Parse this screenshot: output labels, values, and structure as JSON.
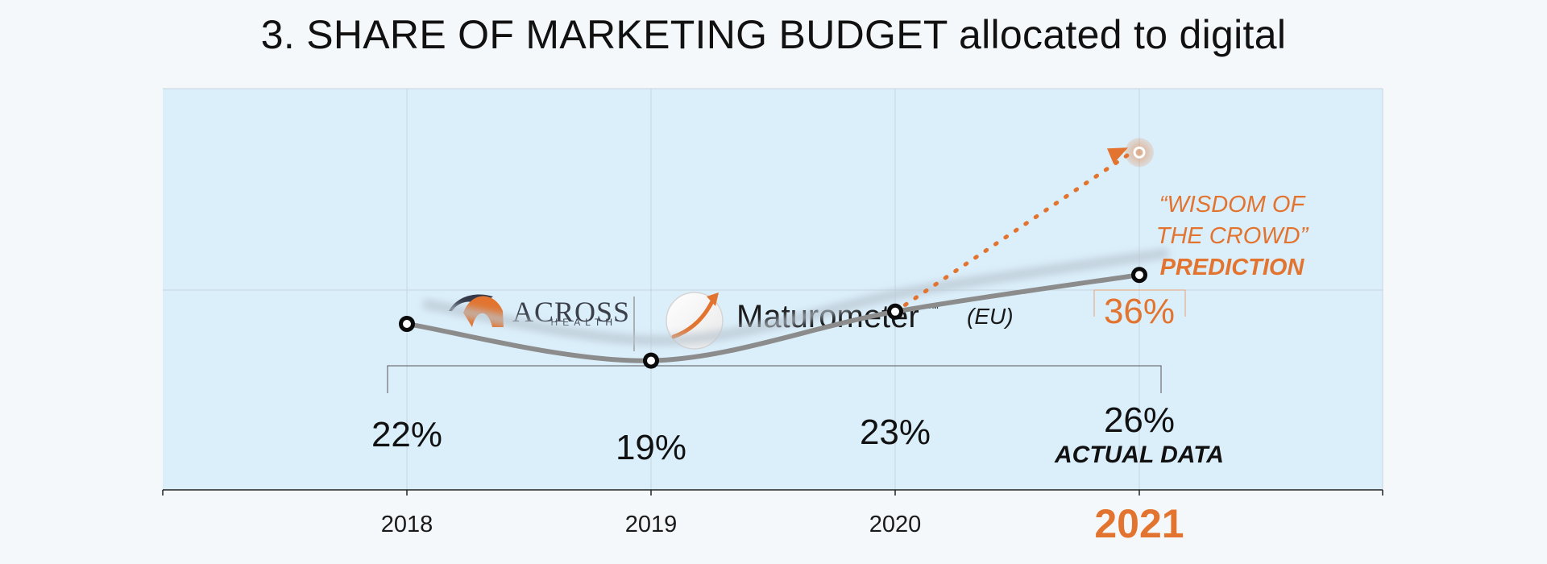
{
  "title": {
    "main": "3. SHARE OF MARKETING BUDGET",
    "rest": " allocated to digital"
  },
  "logos": {
    "across_name": "ACROSS",
    "across_sub": "HEALTH",
    "maturometer": "Maturometer",
    "trademark": "™",
    "region": "(EU)"
  },
  "chart_data": {
    "type": "line",
    "title": "3. SHARE OF MARKETING BUDGET allocated to digital",
    "x": [
      "2018",
      "2019",
      "2020",
      "2021"
    ],
    "ylim": [
      0,
      100
    ],
    "series": [
      {
        "values": [
          22,
          19,
          23,
          26
        ],
        "labels": [
          "22%",
          "19%",
          "23%",
          "26%"
        ],
        "label_2021": "ACTUAL DATA"
      },
      {
        "values": [
          23,
          36
        ],
        "x": [
          "2020",
          "2021"
        ],
        "labels": [
          "",
          "36%"
        ]
      }
    ],
    "prediction_caption": [
      "“WISDOM OF",
      "THE CROWD”",
      "PREDICTION"
    ],
    "actual_caption": "ACTUAL DATA",
    "highlight_year": "2021",
    "colors": {
      "plot_bg": "#dbeffb",
      "actual_line": "#8c8c8c",
      "prediction": "#e2742f",
      "text": "#111111"
    },
    "grid": true
  }
}
